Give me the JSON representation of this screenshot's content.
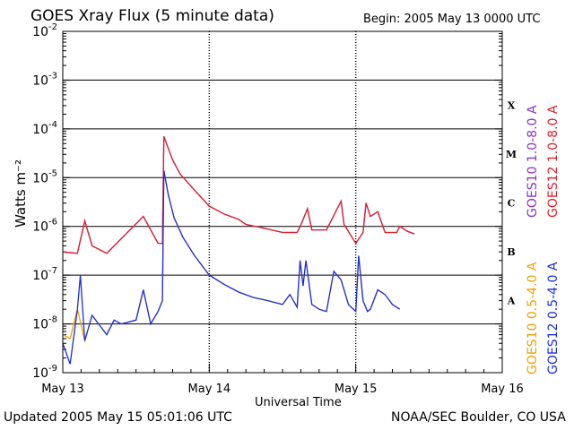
{
  "header": {
    "title": "GOES Xray Flux (5 minute data)",
    "begin": "Begin:  2005 May 13 0000 UTC"
  },
  "footer": {
    "updated": "Updated 2005 May 15 05:01:06 UTC",
    "credit": "NOAA/SEC Boulder, CO USA"
  },
  "chart_data": {
    "type": "line",
    "title": "GOES Xray Flux (5 minute data)",
    "xlabel": "Universal Time",
    "ylabel": "Watts m⁻²",
    "y_scale": "log",
    "ylim": [
      1e-09,
      0.01
    ],
    "xlim": [
      0,
      3
    ],
    "x_unit": "days since 2005 May 13 0000 UTC",
    "x_tick_labels": [
      "May 13",
      "May 14",
      "May 15",
      "May 16"
    ],
    "y_tick_labels": [
      {
        "base": "10",
        "exp": "-9"
      },
      {
        "base": "10",
        "exp": "-8"
      },
      {
        "base": "10",
        "exp": "-7"
      },
      {
        "base": "10",
        "exp": "-6"
      },
      {
        "base": "10",
        "exp": "-5"
      },
      {
        "base": "10",
        "exp": "-4"
      },
      {
        "base": "10",
        "exp": "-3"
      },
      {
        "base": "10",
        "exp": "-2"
      }
    ],
    "flare_classes": [
      {
        "label": "X",
        "level": 0.0001
      },
      {
        "label": "M",
        "level": 1e-05
      },
      {
        "label": "C",
        "level": 1e-06
      },
      {
        "label": "B",
        "level": 1e-07
      },
      {
        "label": "A",
        "level": 1e-08
      }
    ],
    "grid": "horizontal lines at each decade; dotted vertical lines at day boundaries",
    "series": [
      {
        "name": "GOES10 1.0-8.0 A",
        "color": "#8b32c8",
        "points": [
          [
            0,
            3e-07
          ],
          [
            0.1,
            2.8e-07
          ],
          [
            0.15,
            1.3e-06
          ],
          [
            0.2,
            4e-07
          ],
          [
            0.3,
            2.8e-07
          ],
          [
            0.55,
            1.6e-06
          ],
          [
            0.65,
            4.5e-07
          ],
          [
            0.68,
            4.5e-07
          ],
          [
            0.69,
            7e-05
          ],
          [
            0.72,
            4e-05
          ],
          [
            0.75,
            2.3e-05
          ],
          [
            0.8,
            1.2e-05
          ],
          [
            0.9,
            5.5e-06
          ],
          [
            1.0,
            2.6e-06
          ],
          [
            1.1,
            1.8e-06
          ],
          [
            1.2,
            1.4e-06
          ],
          [
            1.25,
            1.1e-06
          ],
          [
            1.35,
            9.5e-07
          ],
          [
            1.5,
            7.5e-07
          ],
          [
            1.6,
            7.5e-07
          ],
          [
            1.63,
            1.15e-06
          ],
          [
            1.67,
            2.3e-06
          ],
          [
            1.7,
            8.5e-07
          ],
          [
            1.8,
            8.5e-07
          ],
          [
            1.9,
            3.3e-06
          ],
          [
            1.92,
            1.1e-06
          ],
          [
            2.0,
            4.5e-07
          ],
          [
            2.05,
            7.5e-07
          ],
          [
            2.07,
            3e-06
          ],
          [
            2.1,
            1.6e-06
          ],
          [
            2.15,
            2e-06
          ],
          [
            2.2,
            7.5e-07
          ],
          [
            2.28,
            7.5e-07
          ],
          [
            2.3,
            1e-06
          ],
          [
            2.35,
            8e-07
          ],
          [
            2.4,
            7e-07
          ]
        ]
      },
      {
        "name": "GOES12 1.0-8.0 A",
        "color": "#e0202c",
        "points": [
          [
            0,
            3e-07
          ],
          [
            0.1,
            2.8e-07
          ],
          [
            0.15,
            1.3e-06
          ],
          [
            0.2,
            4e-07
          ],
          [
            0.3,
            2.8e-07
          ],
          [
            0.55,
            1.6e-06
          ],
          [
            0.65,
            4.5e-07
          ],
          [
            0.68,
            4.5e-07
          ],
          [
            0.69,
            7e-05
          ],
          [
            0.72,
            4e-05
          ],
          [
            0.75,
            2.3e-05
          ],
          [
            0.8,
            1.2e-05
          ],
          [
            0.9,
            5.5e-06
          ],
          [
            1.0,
            2.6e-06
          ],
          [
            1.1,
            1.8e-06
          ],
          [
            1.2,
            1.4e-06
          ],
          [
            1.25,
            1.1e-06
          ],
          [
            1.35,
            9.5e-07
          ],
          [
            1.5,
            7.5e-07
          ],
          [
            1.6,
            7.5e-07
          ],
          [
            1.63,
            1.15e-06
          ],
          [
            1.67,
            2.3e-06
          ],
          [
            1.7,
            8.5e-07
          ],
          [
            1.8,
            8.5e-07
          ],
          [
            1.9,
            3.3e-06
          ],
          [
            1.92,
            1.1e-06
          ],
          [
            2.0,
            4.5e-07
          ],
          [
            2.05,
            7.5e-07
          ],
          [
            2.07,
            3e-06
          ],
          [
            2.1,
            1.6e-06
          ],
          [
            2.15,
            2e-06
          ],
          [
            2.2,
            7.5e-07
          ],
          [
            2.28,
            7.5e-07
          ],
          [
            2.3,
            1e-06
          ],
          [
            2.35,
            8e-07
          ],
          [
            2.4,
            7e-07
          ]
        ]
      },
      {
        "name": "GOES10 0.5-4.0 A",
        "color": "#f0a000",
        "points": [
          [
            0,
            6e-09
          ],
          [
            0.05,
            5e-09
          ],
          [
            0.1,
            2e-08
          ],
          [
            0.15,
            4.5e-09
          ],
          [
            0.2,
            1.5e-08
          ],
          [
            0.3,
            6e-09
          ],
          [
            0.35,
            1.2e-08
          ],
          [
            0.4,
            1e-08
          ],
          [
            0.5,
            1.2e-08
          ],
          [
            0.55,
            5e-08
          ],
          [
            0.6,
            1e-08
          ],
          [
            0.65,
            1.8e-08
          ],
          [
            0.68,
            3e-08
          ],
          [
            0.69,
            1.4e-05
          ],
          [
            0.72,
            4.5e-06
          ],
          [
            0.76,
            1.5e-06
          ],
          [
            0.82,
            6e-07
          ],
          [
            0.9,
            2.5e-07
          ],
          [
            1.0,
            1e-07
          ],
          [
            1.1,
            6.5e-08
          ],
          [
            1.2,
            4.5e-08
          ],
          [
            1.3,
            3.5e-08
          ],
          [
            1.4,
            3e-08
          ],
          [
            1.5,
            2.5e-08
          ],
          [
            1.55,
            4e-08
          ],
          [
            1.6,
            2.2e-08
          ],
          [
            1.62,
            2e-07
          ],
          [
            1.64,
            6e-08
          ],
          [
            1.66,
            2e-07
          ],
          [
            1.7,
            2.5e-08
          ],
          [
            1.75,
            2e-08
          ],
          [
            1.8,
            1.8e-08
          ],
          [
            1.85,
            1.2e-07
          ],
          [
            1.9,
            8e-08
          ],
          [
            1.95,
            2.5e-08
          ],
          [
            2.0,
            1.8e-08
          ],
          [
            2.02,
            2.5e-07
          ],
          [
            2.05,
            3e-08
          ],
          [
            2.08,
            1.8e-08
          ],
          [
            2.1,
            2e-08
          ],
          [
            2.15,
            5e-08
          ],
          [
            2.2,
            4e-08
          ],
          [
            2.25,
            2.5e-08
          ],
          [
            2.3,
            2e-08
          ]
        ]
      },
      {
        "name": "GOES12 0.5-4.0 A",
        "color": "#1a2ee0",
        "points": [
          [
            0,
            4e-09
          ],
          [
            0.05,
            1.5e-09
          ],
          [
            0.1,
            2e-08
          ],
          [
            0.12,
            1e-07
          ],
          [
            0.15,
            4.5e-09
          ],
          [
            0.2,
            1.5e-08
          ],
          [
            0.3,
            6e-09
          ],
          [
            0.35,
            1.2e-08
          ],
          [
            0.4,
            1e-08
          ],
          [
            0.5,
            1.2e-08
          ],
          [
            0.55,
            5e-08
          ],
          [
            0.6,
            1e-08
          ],
          [
            0.65,
            1.8e-08
          ],
          [
            0.68,
            3e-08
          ],
          [
            0.69,
            1.4e-05
          ],
          [
            0.72,
            4.5e-06
          ],
          [
            0.76,
            1.5e-06
          ],
          [
            0.82,
            6e-07
          ],
          [
            0.9,
            2.5e-07
          ],
          [
            1.0,
            1e-07
          ],
          [
            1.1,
            6.5e-08
          ],
          [
            1.2,
            4.5e-08
          ],
          [
            1.3,
            3.5e-08
          ],
          [
            1.4,
            3e-08
          ],
          [
            1.5,
            2.5e-08
          ],
          [
            1.55,
            4e-08
          ],
          [
            1.6,
            2.2e-08
          ],
          [
            1.62,
            2e-07
          ],
          [
            1.64,
            6e-08
          ],
          [
            1.66,
            2e-07
          ],
          [
            1.7,
            2.5e-08
          ],
          [
            1.75,
            2e-08
          ],
          [
            1.8,
            1.8e-08
          ],
          [
            1.85,
            1.2e-07
          ],
          [
            1.9,
            8e-08
          ],
          [
            1.95,
            2.5e-08
          ],
          [
            2.0,
            1.8e-08
          ],
          [
            2.02,
            2.5e-07
          ],
          [
            2.05,
            3e-08
          ],
          [
            2.08,
            1.8e-08
          ],
          [
            2.1,
            2e-08
          ],
          [
            2.15,
            5e-08
          ],
          [
            2.2,
            4e-08
          ],
          [
            2.25,
            2.5e-08
          ],
          [
            2.3,
            2e-08
          ]
        ]
      }
    ]
  }
}
